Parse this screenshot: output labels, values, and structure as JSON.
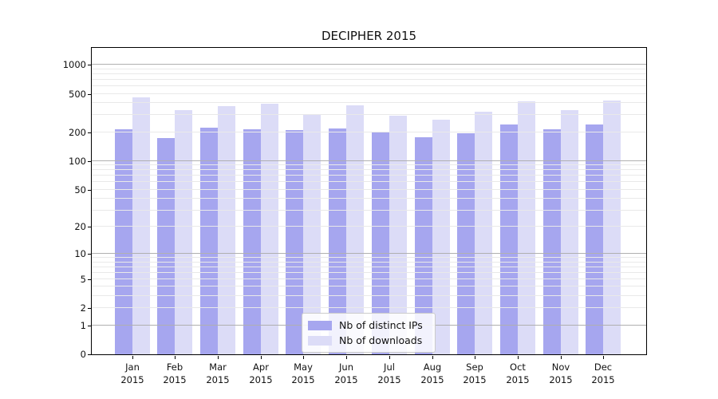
{
  "chart_data": {
    "type": "bar",
    "title": "DECIPHER 2015",
    "categories": [
      "Jan 2015",
      "Feb 2015",
      "Mar 2015",
      "Apr 2015",
      "May 2015",
      "Jun 2015",
      "Jul 2015",
      "Aug 2015",
      "Sep 2015",
      "Oct 2015",
      "Nov 2015",
      "Dec 2015"
    ],
    "series": [
      {
        "name": "Nb of distinct IPs",
        "color": "#a6a6ef",
        "values": [
          216,
          174,
          221,
          214,
          209,
          217,
          198,
          177,
          196,
          242,
          215,
          240
        ]
      },
      {
        "name": "Nb of downloads",
        "color": "#dcdcf7",
        "values": [
          458,
          336,
          370,
          391,
          306,
          378,
          299,
          268,
          325,
          418,
          340,
          427
        ]
      }
    ],
    "xlabel": "",
    "ylabel": "",
    "yscale": "log1p",
    "ylim": [
      0,
      1500
    ],
    "yticks": [
      0,
      1,
      2,
      5,
      10,
      20,
      50,
      100,
      200,
      500,
      1000
    ],
    "major_gridlines": [
      1,
      10,
      100,
      1000
    ],
    "minor_gridlines": [
      2,
      3,
      4,
      5,
      6,
      7,
      8,
      9,
      20,
      30,
      40,
      50,
      60,
      70,
      80,
      90,
      200,
      300,
      400,
      500,
      600,
      700,
      800,
      900
    ],
    "grid": "on",
    "legend_position": "lower center",
    "colors": {
      "major_grid": "#b0b0b0",
      "minor_grid": "#e9e9e9",
      "axis": "#000000",
      "text": "#111111",
      "background": "#ffffff"
    }
  }
}
